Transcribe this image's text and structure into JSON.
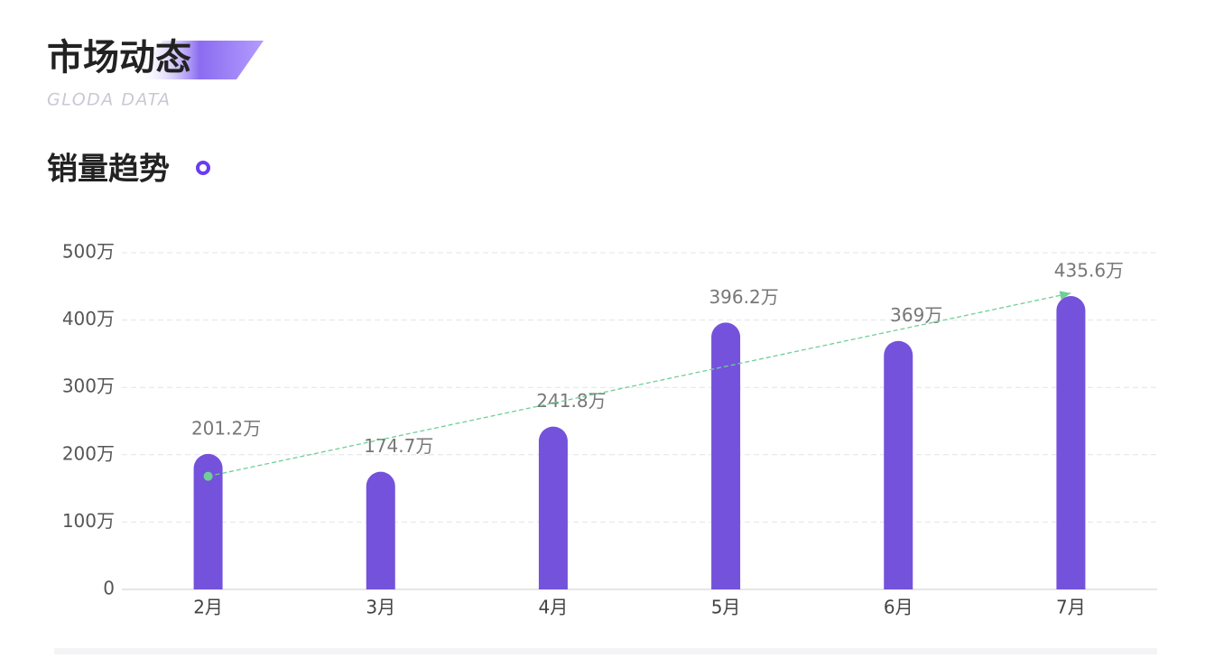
{
  "header": {
    "title": "市场动态",
    "subtitle": "GLODA DATA"
  },
  "chart_data": {
    "type": "bar",
    "title": "销量趋势",
    "categories": [
      "2月",
      "3月",
      "4月",
      "5月",
      "6月",
      "7月"
    ],
    "values": [
      201.2,
      174.7,
      241.8,
      396.2,
      369,
      435.6
    ],
    "value_labels": [
      "201.2万",
      "174.7万",
      "241.8万",
      "396.2万",
      "369万",
      "435.6万"
    ],
    "color": "#7452dc",
    "ylim": [
      0,
      500
    ],
    "yticks": [
      0,
      {
        "value": 100,
        "label": "100万"
      },
      {
        "value": 200,
        "label": "200万"
      },
      {
        "value": 300,
        "label": "300万"
      },
      {
        "value": 400,
        "label": "400万"
      },
      {
        "value": 500,
        "label": "500万"
      }
    ],
    "grid": true,
    "trend_line": {
      "color": "#6fcf97",
      "values": [
        168,
        440
      ]
    }
  }
}
